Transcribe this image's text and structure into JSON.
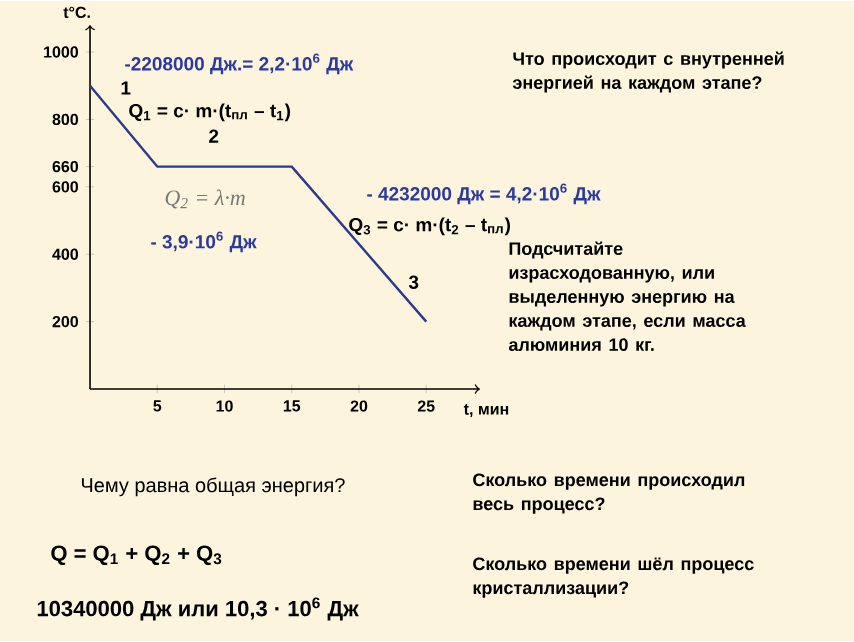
{
  "chart_data": {
    "type": "line",
    "xlabel": "t, мин",
    "ylabel": "t°C.",
    "x": [
      0,
      5,
      15,
      25
    ],
    "values": [
      900,
      660,
      660,
      200
    ],
    "color": "#2b3990",
    "xlim": [
      0,
      29
    ],
    "ylim": [
      0,
      1080
    ],
    "xticks": [
      5,
      10,
      15,
      20,
      25
    ],
    "yticks": [
      200,
      400,
      600,
      660,
      800,
      1000
    ],
    "annotations": [
      "-2208000 Дж.= 2,2·10$^{6}$ Дж",
      "Q$_{1}$ = c· m·(t$_{пл}$ – t$_{1}$)",
      "Q$_{2}$ = λ·m",
      "- 3,9·10$^{6}$ Дж",
      "- 4232000 Дж = 4,2·10$^{6}$ Дж",
      "Q$_{3}$ = c· m·(t$_{2}$ – t$_{пл}$)",
      "Что происходит с внутренней энергией на каждом этапе?",
      "Подсчитайте израсходованную, или выделенную энергию на каждом этапе, если масса алюминия 10 кг.",
      "Чему равна общая энергия?",
      "Q = Q$_{1}$ + Q$_{2}$ + Q$_{3}$",
      "10340000 Дж или 10,3 · 10$^{6}$ Дж",
      "Сколько времени происходил весь процесс?",
      "Сколько времени шёл процесс кристаллизации?",
      "1",
      "2",
      "3"
    ]
  }
}
